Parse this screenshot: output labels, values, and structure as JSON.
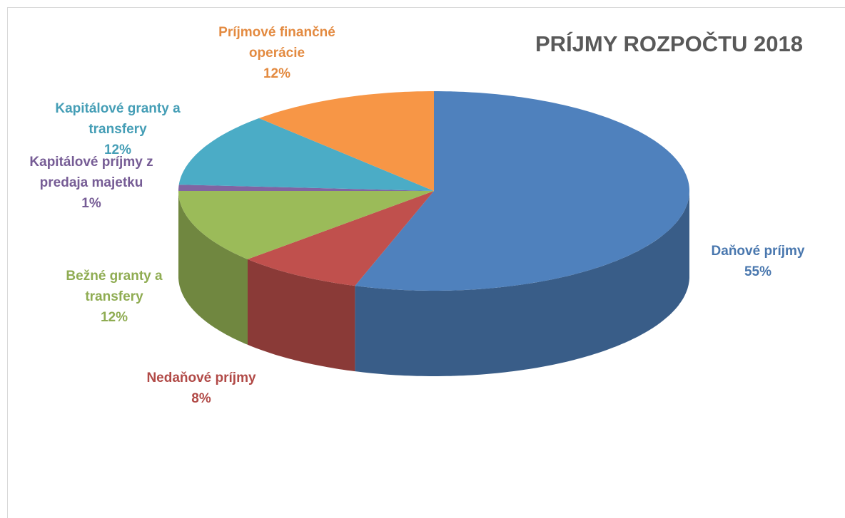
{
  "chart_data": {
    "type": "pie",
    "title": "PRÍJMY ROZPOČTU 2018",
    "categories": [
      "Daňové príjmy",
      "Nedaňové príjmy",
      "Bežné granty a transfery",
      "Kapitálové príjmy z predaja majetku",
      "Kapitálové granty a transfery",
      "Príjmové finančné operácie"
    ],
    "values": [
      55,
      8,
      12,
      1,
      12,
      12
    ],
    "value_labels": [
      "55%",
      "8%",
      "12%",
      "1%",
      "12%",
      "12%"
    ],
    "colors": [
      "#4f81bd",
      "#c0504d",
      "#9bbb59",
      "#8064a2",
      "#4bacc6",
      "#f79646"
    ]
  }
}
